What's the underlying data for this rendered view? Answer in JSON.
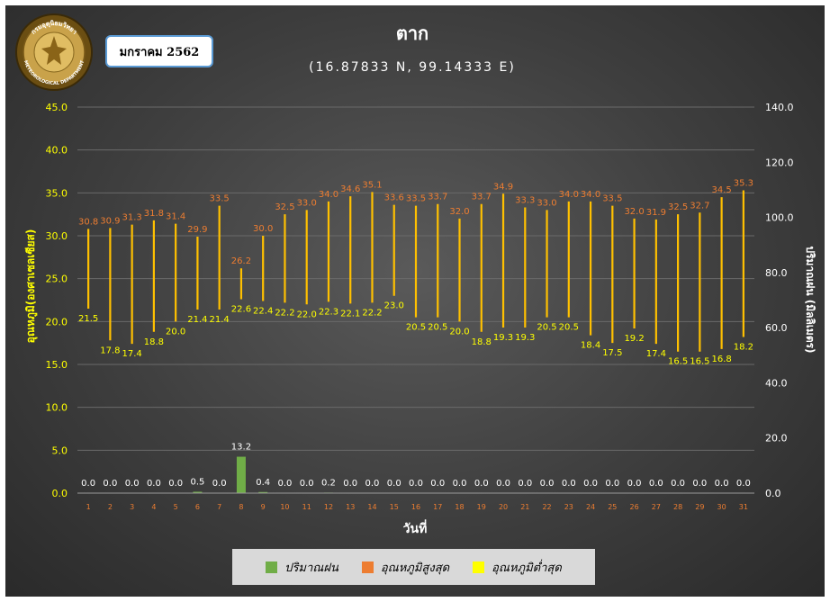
{
  "header": {
    "month_label": "มกราคม 2562",
    "station": "ตาก",
    "coordinates": "(16.87833 N, 99.14333 E)"
  },
  "logo": {
    "text_top": "กรมอุตุนิยมวิทยา",
    "text_bottom": "METEOROLOGICAL DEPARTMENT"
  },
  "colors": {
    "rain": "#70ad47",
    "tmax": "#ed7d31",
    "tmin": "#ffff00",
    "range_line": "#ffc000",
    "left_axis_text": "#ffff00",
    "right_axis_text": "#ffffff",
    "day_tick_text": "#ed7d31"
  },
  "chart_data": {
    "type": "bar",
    "title": "ตาก",
    "subtitle": "(16.87833 N, 99.14333 E)",
    "xlabel": "วันที่",
    "ylabel_left": "อุณหภูมิ(องศาเซลเซียส)",
    "ylabel_right": "ปริมาณฝน (มิลลิเมตร)",
    "ylim_left": [
      0,
      45
    ],
    "ylim_right": [
      0,
      140
    ],
    "yticks_left": [
      "0.0",
      "5.0",
      "10.0",
      "15.0",
      "20.0",
      "25.0",
      "30.0",
      "35.0",
      "40.0",
      "45.0"
    ],
    "yticks_right": [
      "0.0",
      "20.0",
      "40.0",
      "60.0",
      "80.0",
      "100.0",
      "120.0",
      "140.0"
    ],
    "grid": true,
    "legend_position": "bottom",
    "categories": [
      "1",
      "2",
      "3",
      "4",
      "5",
      "6",
      "7",
      "8",
      "9",
      "10",
      "11",
      "12",
      "13",
      "14",
      "15",
      "16",
      "17",
      "18",
      "19",
      "20",
      "21",
      "22",
      "23",
      "24",
      "25",
      "26",
      "27",
      "28",
      "29",
      "30",
      "31"
    ],
    "series": [
      {
        "name": "ปริมาณฝน",
        "axis": "right",
        "kind": "bar",
        "values": [
          0.0,
          0.0,
          0.0,
          0.0,
          0.0,
          0.5,
          0.0,
          13.2,
          0.4,
          0.0,
          0.0,
          0.2,
          0.0,
          0.0,
          0.0,
          0.0,
          0.0,
          0.0,
          0.0,
          0.0,
          0.0,
          0.0,
          0.0,
          0.0,
          0.0,
          0.0,
          0.0,
          0.0,
          0.0,
          0.0,
          0.0
        ]
      },
      {
        "name": "อุณหภูมิสูงสุด",
        "axis": "left",
        "kind": "range-high",
        "values": [
          30.8,
          30.9,
          31.3,
          31.8,
          31.4,
          29.9,
          33.5,
          26.2,
          30.0,
          32.5,
          33.0,
          34.0,
          34.6,
          35.1,
          33.6,
          33.5,
          33.7,
          32.0,
          33.7,
          34.9,
          33.3,
          33.0,
          34.0,
          34.0,
          33.5,
          32.0,
          31.9,
          32.5,
          32.7,
          34.5,
          35.3
        ]
      },
      {
        "name": "อุณหภูมิต่ำสุด",
        "axis": "left",
        "kind": "range-low",
        "values": [
          21.5,
          17.8,
          17.4,
          18.8,
          20.0,
          21.4,
          21.4,
          22.6,
          22.4,
          22.2,
          22.0,
          22.3,
          22.1,
          22.2,
          23.0,
          20.5,
          20.5,
          20.0,
          18.8,
          19.3,
          19.3,
          20.5,
          20.5,
          18.4,
          17.5,
          19.2,
          17.4,
          16.5,
          16.5,
          16.8,
          18.2
        ]
      }
    ]
  }
}
